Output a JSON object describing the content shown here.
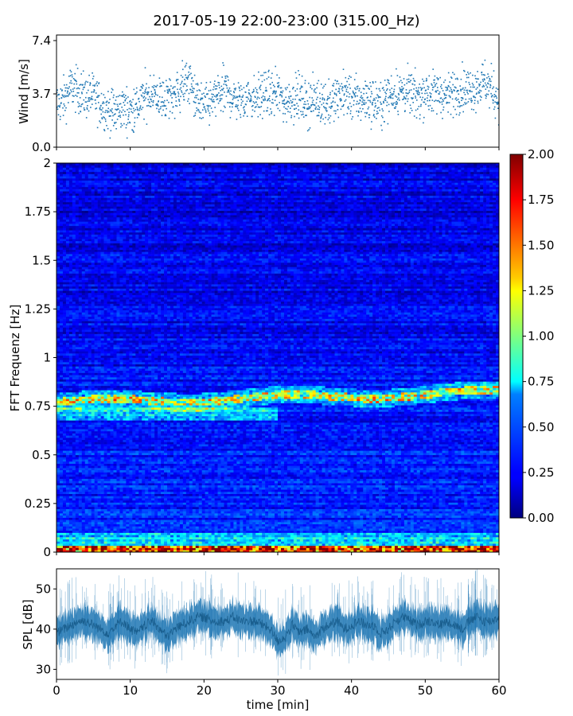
{
  "figure": {
    "title": "2017-05-19 22:00-23:00 (315.00_Hz)"
  },
  "chart_data": [
    {
      "type": "scatter",
      "ylabel": "Wind [m/s]",
      "xlim": [
        0,
        60
      ],
      "ylim": [
        0,
        7.4
      ],
      "yticks": [
        "0.0",
        "3.7",
        "7.4"
      ],
      "color": "#1f77b4",
      "description_of_series": "dense per-sample wind speed points",
      "series": [
        {
          "x": [
            0,
            1,
            2,
            3,
            4,
            5,
            6,
            7,
            8,
            9,
            10,
            11,
            12,
            13,
            14,
            15,
            16,
            17,
            18,
            19,
            20,
            21,
            22,
            23,
            24,
            25,
            26,
            27,
            28,
            29,
            30,
            31,
            32,
            33,
            34,
            35,
            36,
            37,
            38,
            39,
            40,
            41,
            42,
            43,
            44,
            45,
            46,
            47,
            48,
            49,
            50,
            51,
            52,
            53,
            54,
            55,
            56,
            57,
            58,
            59,
            60
          ],
          "y": [
            3.0,
            3.3,
            4.2,
            3.9,
            3.5,
            3.6,
            3.0,
            2.6,
            2.4,
            2.8,
            2.5,
            2.9,
            3.5,
            3.8,
            3.3,
            3.4,
            3.6,
            4.2,
            4.6,
            3.2,
            2.8,
            3.1,
            3.7,
            3.9,
            3.4,
            3.2,
            3.6,
            3.3,
            3.7,
            3.6,
            3.8,
            3.1,
            3.5,
            3.4,
            3.0,
            3.3,
            3.2,
            3.0,
            3.4,
            3.8,
            3.5,
            3.2,
            3.4,
            3.1,
            3.0,
            3.6,
            3.8,
            3.9,
            3.7,
            3.4,
            3.9,
            3.7,
            3.8,
            3.5,
            3.9,
            4.1,
            4.0,
            4.2,
            4.6,
            4.0,
            3.3
          ]
        }
      ]
    },
    {
      "type": "heatmap",
      "ylabel": "FFT Frequenz [Hz]",
      "xlim": [
        0,
        60
      ],
      "ylim": [
        0,
        2
      ],
      "yticks": [
        "0",
        "0.25",
        "0.5",
        "0.75",
        "1",
        "1.25",
        "1.5",
        "1.75",
        "2"
      ],
      "colorbar": {
        "colormap": "jet",
        "range": [
          0.0,
          2.0
        ],
        "ticks": [
          "0.00",
          "0.25",
          "0.50",
          "0.75",
          "1.00",
          "1.25",
          "1.50",
          "1.75",
          "2.00"
        ]
      },
      "features": {
        "band_frequency_start_hz": 0.77,
        "band_frequency_end_hz": 0.82,
        "lower_band_frequency_hz": 0.71,
        "low_frequency_band_hz": 0.01
      }
    },
    {
      "type": "area",
      "ylabel": "SPL [dB]",
      "xlabel": "time [min]",
      "xlim": [
        0,
        60
      ],
      "ylim": [
        27.5,
        55
      ],
      "xticks": [
        "0",
        "10",
        "20",
        "30",
        "40",
        "50",
        "60"
      ],
      "yticks": [
        "30",
        "40",
        "50"
      ],
      "color": "#1f77b4",
      "series": [
        {
          "x": [
            0,
            1,
            2,
            3,
            4,
            5,
            6,
            7,
            8,
            9,
            10,
            11,
            12,
            13,
            14,
            15,
            16,
            17,
            18,
            19,
            20,
            21,
            22,
            23,
            24,
            25,
            26,
            27,
            28,
            29,
            30,
            31,
            32,
            33,
            34,
            35,
            36,
            37,
            38,
            39,
            40,
            41,
            42,
            43,
            44,
            45,
            46,
            47,
            48,
            49,
            50,
            51,
            52,
            53,
            54,
            55,
            56,
            57,
            58,
            59,
            60
          ],
          "y": [
            39,
            40,
            41,
            42,
            42,
            41,
            40,
            39,
            41,
            42,
            40,
            39,
            41,
            42,
            40,
            38,
            40,
            41,
            42,
            43,
            43,
            42,
            42,
            42,
            43,
            42,
            42,
            42,
            41,
            40,
            37,
            38,
            41,
            39,
            40,
            38,
            40,
            41,
            42,
            40,
            41,
            42,
            41,
            41,
            39,
            40,
            42,
            43,
            42,
            41,
            42,
            42,
            41,
            42,
            41,
            40,
            42,
            43,
            42,
            42,
            43
          ]
        }
      ]
    }
  ]
}
